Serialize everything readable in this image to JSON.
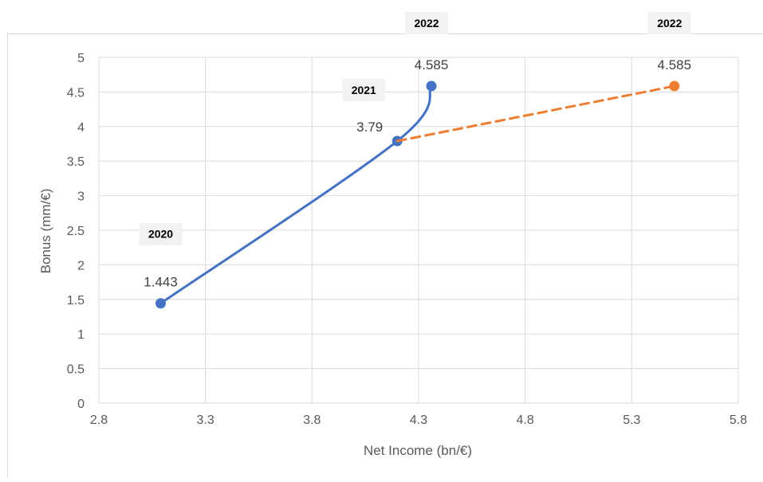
{
  "chart_data": {
    "type": "scatter",
    "xlabel": "Net Income (bn/€)",
    "ylabel": "Bonus (mm/€)",
    "xlim": [
      2.8,
      5.8
    ],
    "ylim": [
      0,
      5
    ],
    "x_ticks": [
      "2.8",
      "3.3",
      "3.8",
      "4.3",
      "4.8",
      "5.3",
      "5.8"
    ],
    "y_ticks": [
      "0",
      "0.5",
      "1",
      "1.5",
      "2",
      "2.5",
      "3",
      "3.5",
      "4",
      "4.5",
      "5"
    ],
    "grid": true,
    "legend": "none",
    "series": [
      {
        "color": "#4472C4",
        "line": "solid-smoothed",
        "points": [
          {
            "x": 3.09,
            "y": 1.443,
            "label": "1.443",
            "annotation": "2020"
          },
          {
            "x": 4.2,
            "y": 3.79,
            "label": "3.79",
            "annotation": "2021"
          },
          {
            "x": 4.36,
            "y": 4.585,
            "label": "4.585",
            "annotation": "2022"
          }
        ]
      },
      {
        "color": "#ED7D31",
        "line": "dashed",
        "points": [
          {
            "x": 4.2,
            "y": 3.79,
            "label": "",
            "annotation": ""
          },
          {
            "x": 5.5,
            "y": 4.585,
            "label": "4.585",
            "annotation": "2022"
          }
        ]
      }
    ]
  }
}
